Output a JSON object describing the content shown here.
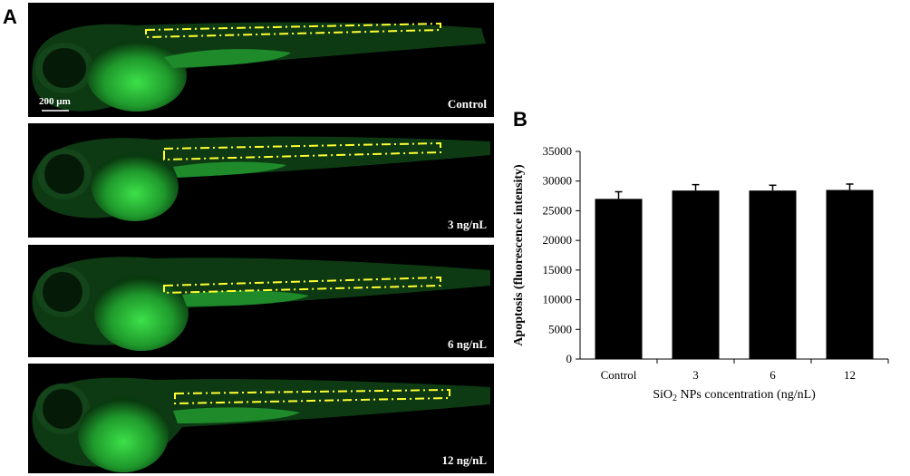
{
  "figure": {
    "panel_a_label": "A",
    "panel_b_label": "B"
  },
  "micrographs": [
    {
      "condition_label": "Control",
      "scale_bar_label": "200 µm"
    },
    {
      "condition_label": "3 ng/nL"
    },
    {
      "condition_label": "6 ng/nL"
    },
    {
      "condition_label": "12 ng/nL"
    }
  ],
  "colors": {
    "fluorescence": "#2fbf3a",
    "roi_outline": "#ffff33",
    "bar": "#000000"
  },
  "chart_data": {
    "type": "bar",
    "categories": [
      "Control",
      "3",
      "6",
      "12"
    ],
    "values": [
      27000,
      28400,
      28400,
      28500
    ],
    "errors": [
      1200,
      1000,
      900,
      1000
    ],
    "title": "",
    "xlabel_main": "SiO",
    "xlabel_sub": "2",
    "xlabel_rest": " NPs concentration (ng/nL)",
    "ylabel": "Apoptosis (fluorescence intensity)",
    "ylim": [
      0,
      35000
    ],
    "yticks": [
      "0",
      "5000",
      "10000",
      "15000",
      "20000",
      "25000",
      "30000",
      "35000"
    ],
    "grid": false
  }
}
